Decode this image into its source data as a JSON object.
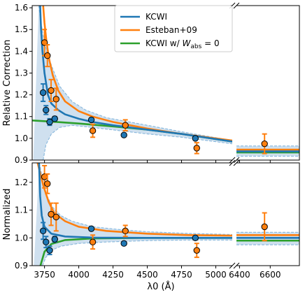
{
  "chart_data": {
    "type": "line",
    "shared_x": {
      "label": "λ0 (Å)",
      "broken_axis": true,
      "segments": [
        {
          "xlim": [
            3660,
            5120
          ],
          "ticks": [
            3750,
            4000,
            4250,
            4500,
            4750,
            5000
          ]
        },
        {
          "xlim": [
            6380,
            6790
          ],
          "ticks": [
            6400,
            6600
          ]
        }
      ],
      "tick_labels": [
        "3750",
        "4000",
        "4250",
        "4500",
        "4750",
        "5000",
        "6400",
        "6600"
      ]
    },
    "legend": {
      "placement": "top-center",
      "entries": [
        "KCWI",
        "Esteban+09",
        "KCWI w/ W_abs = 0"
      ],
      "entry_label_parts": {
        "third_prefix": "KCWI w/ ",
        "third_symbol": "W",
        "third_subscript": "abs",
        "third_suffix": " = 0"
      }
    },
    "colors": {
      "kcwi": "#1f77b4",
      "esteban": "#ff7f0e",
      "kcwi_wabs0": "#2ca02c",
      "band_fill": "#cfe0ef",
      "band_edge": "#87b7dc",
      "marker_edge": "#000000"
    },
    "panels": [
      {
        "name": "relative-correction",
        "ylabel": "Relative Correction",
        "ylim": [
          0.9,
          1.61
        ],
        "yticks": [
          0.9,
          1.0,
          1.1,
          1.2,
          1.3,
          1.4,
          1.5,
          1.6
        ],
        "ytick_labels": [
          "0.9",
          "1.0",
          "1.1",
          "1.2",
          "1.3",
          "1.4",
          "1.5",
          "1.6"
        ],
        "right_level": {
          "kcwi": 0.94,
          "esteban": 0.948,
          "kcwi_wabs0": 0.935,
          "band_lo": 0.918,
          "band_hi": 0.965
        },
        "points": {
          "kcwi": [
            {
              "x": 3750,
              "y": 1.21,
              "err": 0.04
            },
            {
              "x": 3771,
              "y": 1.13,
              "err": 0.02
            },
            {
              "x": 3798,
              "y": 1.075,
              "err": 0.015
            },
            {
              "x": 3835,
              "y": 1.09,
              "err": 0.01
            },
            {
              "x": 4102,
              "y": 1.085,
              "err": 0.008
            },
            {
              "x": 4340,
              "y": 1.015,
              "err": 0.005
            },
            {
              "x": 4861,
              "y": 1.0,
              "err": 0.004
            }
          ],
          "esteban": [
            {
              "x": 3750,
              "y": 1.44,
              "err": 0.06
            },
            {
              "x": 3771,
              "y": 1.38,
              "err": 0.05
            },
            {
              "x": 3798,
              "y": 1.22,
              "err": 0.05
            },
            {
              "x": 3835,
              "y": 1.18,
              "err": 0.05
            },
            {
              "x": 4102,
              "y": 1.035,
              "err": 0.03
            },
            {
              "x": 4340,
              "y": 1.06,
              "err": 0.025
            },
            {
              "x": 4861,
              "y": 0.955,
              "err": 0.025
            },
            {
              "x": 6563,
              "y": 0.975,
              "err": 0.045
            }
          ]
        },
        "curves": {
          "kcwi": [
            [
              3718,
              1.61
            ],
            [
              3725,
              1.5
            ],
            [
              3735,
              1.4
            ],
            [
              3750,
              1.3
            ],
            [
              3775,
              1.2
            ],
            [
              3800,
              1.16
            ],
            [
              3850,
              1.13
            ],
            [
              3900,
              1.11
            ],
            [
              4000,
              1.09
            ],
            [
              4100,
              1.075
            ],
            [
              4250,
              1.06
            ],
            [
              4500,
              1.04
            ],
            [
              4750,
              1.02
            ],
            [
              5120,
              0.985
            ]
          ],
          "esteban": [
            [
              3740,
              1.61
            ],
            [
              3750,
              1.53
            ],
            [
              3765,
              1.44
            ],
            [
              3785,
              1.36
            ],
            [
              3810,
              1.29
            ],
            [
              3850,
              1.22
            ],
            [
              3900,
              1.17
            ],
            [
              4000,
              1.125
            ],
            [
              4100,
              1.1
            ],
            [
              4250,
              1.075
            ],
            [
              4500,
              1.045
            ],
            [
              4750,
              1.02
            ],
            [
              5120,
              0.99
            ]
          ],
          "kcwi_wabs0": [
            [
              3660,
              1.082
            ],
            [
              3800,
              1.077
            ],
            [
              4000,
              1.068
            ],
            [
              4250,
              1.055
            ],
            [
              4500,
              1.04
            ],
            [
              4750,
              1.02
            ],
            [
              5120,
              0.985
            ]
          ],
          "band_hi": [
            [
              3708,
              1.61
            ],
            [
              3720,
              1.55
            ],
            [
              3740,
              1.47
            ],
            [
              3770,
              1.39
            ],
            [
              3810,
              1.32
            ],
            [
              3860,
              1.24
            ],
            [
              3950,
              1.17
            ],
            [
              4050,
              1.13
            ],
            [
              4200,
              1.095
            ],
            [
              4500,
              1.06
            ],
            [
              4750,
              1.03
            ],
            [
              5120,
              0.99
            ]
          ],
          "band_lo": [
            [
              3740,
              0.9
            ],
            [
              3760,
              0.97
            ],
            [
              3800,
              1.02
            ],
            [
              3860,
              1.05
            ],
            [
              3950,
              1.06
            ],
            [
              4100,
              1.05
            ],
            [
              4300,
              1.035
            ],
            [
              4500,
              1.02
            ],
            [
              4750,
              1.005
            ],
            [
              5120,
              0.975
            ]
          ]
        }
      },
      {
        "name": "normalized",
        "ylabel": "Normalized",
        "ylim": [
          0.9,
          1.27
        ],
        "yticks": [
          0.9,
          1.0,
          1.1,
          1.2
        ],
        "ytick_labels": [
          "0.9",
          "1.0",
          "1.1",
          "1.2"
        ],
        "right_level": {
          "kcwi": 1.0,
          "esteban": 1.01,
          "kcwi_wabs0": 0.99,
          "band_lo": 0.975,
          "band_hi": 1.02
        },
        "points": {
          "kcwi": [
            {
              "x": 3750,
              "y": 1.025,
              "err": 0.03
            },
            {
              "x": 3771,
              "y": 0.985,
              "err": 0.02
            },
            {
              "x": 3798,
              "y": 0.955,
              "err": 0.015
            },
            {
              "x": 3835,
              "y": 0.995,
              "err": 0.01
            },
            {
              "x": 4102,
              "y": 1.033,
              "err": 0.006
            },
            {
              "x": 4340,
              "y": 0.98,
              "err": 0.005
            },
            {
              "x": 4861,
              "y": 1.0,
              "err": 0.004
            }
          ],
          "esteban": [
            {
              "x": 3750,
              "y": 1.22,
              "err": 0.04
            },
            {
              "x": 3771,
              "y": 1.195,
              "err": 0.035
            },
            {
              "x": 3798,
              "y": 1.085,
              "err": 0.04
            },
            {
              "x": 3835,
              "y": 1.075,
              "err": 0.05
            },
            {
              "x": 4102,
              "y": 0.985,
              "err": 0.025
            },
            {
              "x": 4340,
              "y": 1.025,
              "err": 0.02
            },
            {
              "x": 4861,
              "y": 0.955,
              "err": 0.025
            },
            {
              "x": 6563,
              "y": 1.04,
              "err": 0.05
            }
          ]
        },
        "curves": {
          "kcwi": [
            [
              3710,
              1.27
            ],
            [
              3718,
              1.15
            ],
            [
              3730,
              1.08
            ],
            [
              3750,
              1.04
            ],
            [
              3800,
              1.015
            ],
            [
              3900,
              1.005
            ],
            [
              4100,
              1.001
            ],
            [
              4500,
              1.0
            ],
            [
              5120,
              1.0
            ]
          ],
          "esteban": [
            [
              3700,
              1.27
            ],
            [
              3740,
              1.19
            ],
            [
              3780,
              1.13
            ],
            [
              3820,
              1.09
            ],
            [
              3900,
              1.06
            ],
            [
              4000,
              1.04
            ],
            [
              4200,
              1.025
            ],
            [
              4500,
              1.015
            ],
            [
              4800,
              1.01
            ],
            [
              5120,
              1.008
            ]
          ],
          "kcwi_wabs0": [
            [
              3720,
              0.9
            ],
            [
              3750,
              0.95
            ],
            [
              3800,
              0.978
            ],
            [
              3900,
              0.992
            ],
            [
              4100,
              0.998
            ],
            [
              4500,
              1.0
            ],
            [
              5120,
              1.0
            ]
          ],
          "band_hi": [
            [
              3712,
              1.27
            ],
            [
              3740,
              1.2
            ],
            [
              3770,
              1.15
            ],
            [
              3810,
              1.11
            ],
            [
              3870,
              1.08
            ],
            [
              3950,
              1.06
            ],
            [
              4100,
              1.04
            ],
            [
              4300,
              1.03
            ],
            [
              4500,
              1.022
            ],
            [
              4800,
              1.016
            ],
            [
              5120,
              1.012
            ]
          ],
          "band_lo": [
            [
              3735,
              0.9
            ],
            [
              3760,
              0.93
            ],
            [
              3800,
              0.955
            ],
            [
              3870,
              0.97
            ],
            [
              4000,
              0.98
            ],
            [
              4200,
              0.985
            ],
            [
              4500,
              0.99
            ],
            [
              4800,
              0.992
            ],
            [
              5120,
              0.992
            ]
          ]
        }
      }
    ]
  }
}
